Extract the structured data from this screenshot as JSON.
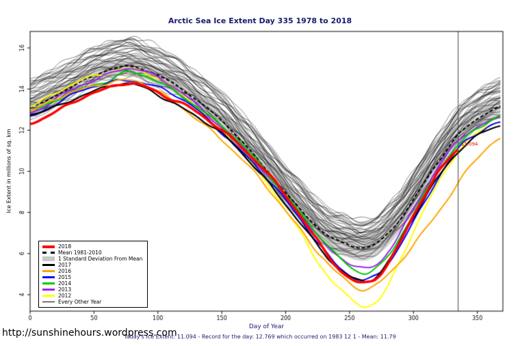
{
  "page": {
    "title": "Arctic Sea Ice Extent Day 335 1978 to 2018",
    "xlabel": "Day of Year",
    "ylabel": "Ice Extent in millions of sq. km",
    "footer_url": "http://sunshinehours.wordpress.com",
    "caption": "Today's Ice Extent: 11.094  - Record for the day: 12.769 which occurred on 1983 12 1  - Mean: 11.79",
    "annotation": {
      "text": "11.094",
      "day": 337,
      "value": 11.1,
      "color": "#FF0000"
    }
  },
  "legend": {
    "items": [
      {
        "label": "2018",
        "color": "#FF0000",
        "type": "line",
        "width": 4
      },
      {
        "label": "Mean 1981-2010",
        "color": "#000000",
        "type": "dashed",
        "width": 3
      },
      {
        "label": "1 Standard Deviation From Mean",
        "color": "#C8C8C8",
        "type": "band"
      },
      {
        "label": "2017",
        "color": "#000000",
        "type": "line",
        "width": 3
      },
      {
        "label": "2016",
        "color": "#FFA500",
        "type": "line",
        "width": 3
      },
      {
        "label": "2015",
        "color": "#0000FF",
        "type": "line",
        "width": 3
      },
      {
        "label": "2014",
        "color": "#00C800",
        "type": "line",
        "width": 3
      },
      {
        "label": "2013",
        "color": "#A020F0",
        "type": "line",
        "width": 3
      },
      {
        "label": "2012",
        "color": "#FFFF00",
        "type": "line",
        "width": 3
      },
      {
        "label": "Every Other Year",
        "color": "#000000",
        "type": "line",
        "width": 1
      }
    ]
  },
  "chart_data": {
    "type": "line",
    "title": "Arctic Sea Ice Extent Day 335 1978 to 2018",
    "xlabel": "Day of Year",
    "ylabel": "Ice Extent in millions of sq. km",
    "xlim": [
      0,
      370
    ],
    "ylim": [
      3.2,
      16.8
    ],
    "xticks": [
      0,
      50,
      100,
      150,
      200,
      250,
      300,
      350
    ],
    "yticks": [
      4,
      6,
      8,
      10,
      12,
      14,
      16
    ],
    "vline_day": 335,
    "today": {
      "day": 335,
      "extent": 11.094,
      "record": 12.769,
      "record_date": "1983 12 1",
      "mean": 11.79
    },
    "mean": {
      "name": "Mean 1981-2010",
      "color": "#000000",
      "anchors": [
        [
          0,
          13.1
        ],
        [
          15,
          13.5
        ],
        [
          35,
          14.2
        ],
        [
          55,
          14.8
        ],
        [
          75,
          15.1
        ],
        [
          90,
          14.9
        ],
        [
          110,
          14.35
        ],
        [
          130,
          13.5
        ],
        [
          150,
          12.45
        ],
        [
          170,
          11.15
        ],
        [
          190,
          9.7
        ],
        [
          210,
          8.25
        ],
        [
          230,
          7.0
        ],
        [
          248,
          6.45
        ],
        [
          262,
          6.3
        ],
        [
          275,
          6.7
        ],
        [
          290,
          7.7
        ],
        [
          305,
          9.1
        ],
        [
          320,
          10.5
        ],
        [
          335,
          11.79
        ],
        [
          350,
          12.55
        ],
        [
          368,
          13.15
        ]
      ]
    },
    "std_band": {
      "name": "1 Standard Deviation From Mean",
      "color": "#D2D2D2",
      "anchors": [
        [
          0,
          0.45
        ],
        [
          60,
          0.4
        ],
        [
          120,
          0.45
        ],
        [
          180,
          0.55
        ],
        [
          240,
          0.6
        ],
        [
          262,
          0.65
        ],
        [
          300,
          0.55
        ],
        [
          368,
          0.45
        ]
      ]
    },
    "series_wiggle": 0.1,
    "series": [
      {
        "name": "2012",
        "color": "#FFFF00",
        "width": 2,
        "anchors": [
          [
            0,
            13.2
          ],
          [
            20,
            13.8
          ],
          [
            40,
            14.4
          ],
          [
            60,
            14.8
          ],
          [
            75,
            15.0
          ],
          [
            90,
            14.8
          ],
          [
            110,
            14.1
          ],
          [
            130,
            13.2
          ],
          [
            150,
            12.0
          ],
          [
            170,
            10.6
          ],
          [
            190,
            9.0
          ],
          [
            210,
            7.2
          ],
          [
            230,
            5.2
          ],
          [
            245,
            4.1
          ],
          [
            258,
            3.5
          ],
          [
            266,
            3.45
          ],
          [
            276,
            4.0
          ],
          [
            290,
            5.8
          ],
          [
            305,
            7.7
          ],
          [
            320,
            9.5
          ],
          [
            335,
            10.9
          ],
          [
            350,
            11.9
          ],
          [
            368,
            12.5
          ]
        ]
      },
      {
        "name": "2013",
        "color": "#A020F0",
        "width": 2,
        "anchors": [
          [
            0,
            12.8
          ],
          [
            20,
            13.5
          ],
          [
            40,
            14.2
          ],
          [
            60,
            14.7
          ],
          [
            75,
            15.0
          ],
          [
            90,
            14.8
          ],
          [
            110,
            14.2
          ],
          [
            130,
            13.3
          ],
          [
            150,
            12.1
          ],
          [
            170,
            10.9
          ],
          [
            190,
            9.5
          ],
          [
            210,
            8.0
          ],
          [
            230,
            6.5
          ],
          [
            245,
            5.7
          ],
          [
            258,
            5.3
          ],
          [
            268,
            5.4
          ],
          [
            280,
            6.1
          ],
          [
            295,
            7.6
          ],
          [
            310,
            9.2
          ],
          [
            325,
            10.7
          ],
          [
            340,
            11.8
          ],
          [
            355,
            12.3
          ],
          [
            368,
            12.6
          ]
        ]
      },
      {
        "name": "2014",
        "color": "#00C800",
        "width": 2,
        "anchors": [
          [
            0,
            12.9
          ],
          [
            20,
            13.4
          ],
          [
            40,
            14.0
          ],
          [
            60,
            14.4
          ],
          [
            75,
            14.8
          ],
          [
            90,
            14.6
          ],
          [
            110,
            14.0
          ],
          [
            130,
            13.2
          ],
          [
            150,
            12.2
          ],
          [
            170,
            11.0
          ],
          [
            190,
            9.6
          ],
          [
            210,
            8.1
          ],
          [
            230,
            6.6
          ],
          [
            245,
            5.6
          ],
          [
            258,
            5.1
          ],
          [
            268,
            5.2
          ],
          [
            280,
            5.9
          ],
          [
            295,
            7.4
          ],
          [
            310,
            9.0
          ],
          [
            325,
            10.5
          ],
          [
            340,
            11.6
          ],
          [
            355,
            12.3
          ],
          [
            368,
            12.7
          ]
        ]
      },
      {
        "name": "2015",
        "color": "#0000FF",
        "width": 2,
        "anchors": [
          [
            0,
            12.7
          ],
          [
            20,
            13.3
          ],
          [
            40,
            13.9
          ],
          [
            60,
            14.25
          ],
          [
            75,
            14.45
          ],
          [
            90,
            14.3
          ],
          [
            110,
            13.8
          ],
          [
            130,
            13.0
          ],
          [
            150,
            11.9
          ],
          [
            170,
            10.7
          ],
          [
            190,
            9.3
          ],
          [
            210,
            7.8
          ],
          [
            230,
            6.2
          ],
          [
            245,
            5.2
          ],
          [
            258,
            4.7
          ],
          [
            268,
            4.8
          ],
          [
            280,
            5.5
          ],
          [
            295,
            7.0
          ],
          [
            310,
            8.7
          ],
          [
            325,
            10.2
          ],
          [
            340,
            11.4
          ],
          [
            355,
            12.0
          ],
          [
            368,
            12.4
          ]
        ]
      },
      {
        "name": "2016",
        "color": "#FFA500",
        "width": 2,
        "anchors": [
          [
            0,
            12.9
          ],
          [
            20,
            13.5
          ],
          [
            40,
            14.0
          ],
          [
            60,
            14.3
          ],
          [
            75,
            14.4
          ],
          [
            90,
            14.2
          ],
          [
            110,
            13.5
          ],
          [
            130,
            12.6
          ],
          [
            150,
            11.5
          ],
          [
            170,
            10.3
          ],
          [
            190,
            8.9
          ],
          [
            210,
            7.3
          ],
          [
            230,
            5.7
          ],
          [
            245,
            4.8
          ],
          [
            258,
            4.3
          ],
          [
            268,
            4.4
          ],
          [
            280,
            5.0
          ],
          [
            295,
            6.0
          ],
          [
            310,
            7.2
          ],
          [
            325,
            8.5
          ],
          [
            340,
            9.9
          ],
          [
            355,
            11.0
          ],
          [
            368,
            11.6
          ]
        ]
      },
      {
        "name": "2017",
        "color": "#000000",
        "width": 2.2,
        "anchors": [
          [
            0,
            12.75
          ],
          [
            20,
            13.1
          ],
          [
            40,
            13.7
          ],
          [
            60,
            14.1
          ],
          [
            75,
            14.25
          ],
          [
            90,
            14.0
          ],
          [
            110,
            13.4
          ],
          [
            130,
            12.7
          ],
          [
            150,
            11.8
          ],
          [
            170,
            10.6
          ],
          [
            190,
            9.2
          ],
          [
            210,
            7.6
          ],
          [
            230,
            6.0
          ],
          [
            245,
            5.1
          ],
          [
            258,
            4.7
          ],
          [
            268,
            4.8
          ],
          [
            280,
            5.6
          ],
          [
            295,
            7.2
          ],
          [
            310,
            8.8
          ],
          [
            325,
            10.2
          ],
          [
            340,
            11.3
          ],
          [
            355,
            11.9
          ],
          [
            368,
            12.2
          ]
        ]
      },
      {
        "name": "2018",
        "color": "#FF0000",
        "width": 3.5,
        "anchors": [
          [
            0,
            12.3
          ],
          [
            20,
            12.9
          ],
          [
            40,
            13.6
          ],
          [
            60,
            14.0
          ],
          [
            75,
            14.25
          ],
          [
            90,
            14.1
          ],
          [
            105,
            13.7
          ],
          [
            125,
            13.1
          ],
          [
            145,
            12.2
          ],
          [
            165,
            11.2
          ],
          [
            185,
            10.0
          ],
          [
            205,
            8.4
          ],
          [
            225,
            6.6
          ],
          [
            240,
            5.4
          ],
          [
            252,
            4.75
          ],
          [
            262,
            4.6
          ],
          [
            272,
            4.9
          ],
          [
            285,
            6.0
          ],
          [
            300,
            7.8
          ],
          [
            315,
            9.5
          ],
          [
            325,
            10.4
          ],
          [
            335,
            11.094
          ]
        ]
      }
    ],
    "ensemble": {
      "name": "Every Other Year",
      "color": "#000000",
      "count": 36,
      "offset_min": -0.5,
      "offset_max": 1.35,
      "wiggle": 0.2,
      "seed": 42
    }
  }
}
